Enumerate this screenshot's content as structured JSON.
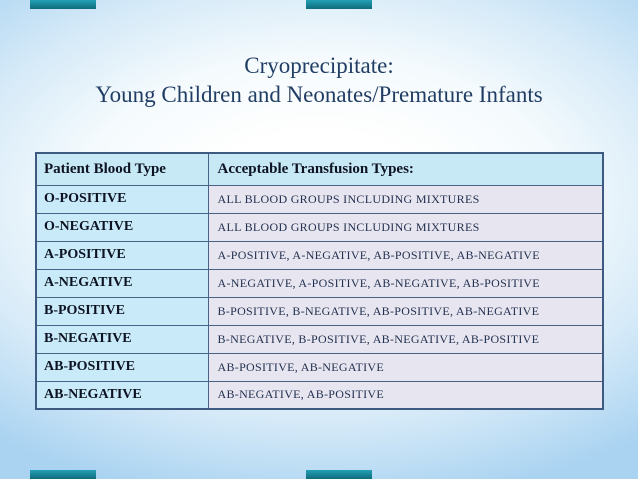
{
  "slide": {
    "title_line1": "Cryoprecipitate:",
    "title_line2": "Young Children and Neonates/Premature Infants"
  },
  "table": {
    "headers": [
      "Patient Blood Type",
      "Acceptable Transfusion Types:"
    ],
    "rows": [
      {
        "blood_type": "O-POSITIVE",
        "acceptable": "ALL BLOOD GROUPS INCLUDING MIXTURES"
      },
      {
        "blood_type": "O-NEGATIVE",
        "acceptable": "ALL BLOOD GROUPS INCLUDING MIXTURES"
      },
      {
        "blood_type": "A-POSITIVE",
        "acceptable": "A-POSITIVE, A-NEGATIVE, AB-POSITIVE, AB-NEGATIVE"
      },
      {
        "blood_type": "A-NEGATIVE",
        "acceptable": "A-NEGATIVE, A-POSITIVE, AB-NEGATIVE, AB-POSITIVE"
      },
      {
        "blood_type": "B-POSITIVE",
        "acceptable": "B-POSITIVE, B-NEGATIVE, AB-POSITIVE, AB-NEGATIVE"
      },
      {
        "blood_type": "B-NEGATIVE",
        "acceptable": "B-NEGATIVE, B-POSITIVE, AB-NEGATIVE, AB-POSITIVE"
      },
      {
        "blood_type": "AB-POSITIVE",
        "acceptable": "AB-POSITIVE, AB-NEGATIVE"
      },
      {
        "blood_type": "AB-NEGATIVE",
        "acceptable": "AB-NEGATIVE, AB-POSITIVE"
      }
    ]
  },
  "colors": {
    "title_text": "#203d63",
    "table_outer_border": "#3e5a80",
    "table_inner_border": "#4a6285",
    "header_bg": "#c7e8f5",
    "blood_type_column_bg": "#c9eaf8",
    "values_column_bg": "#e7e6f0",
    "accent_bar_teal": "#178599",
    "background_edge_blue": "#a9d3f1",
    "background_center": "#ffffff"
  }
}
